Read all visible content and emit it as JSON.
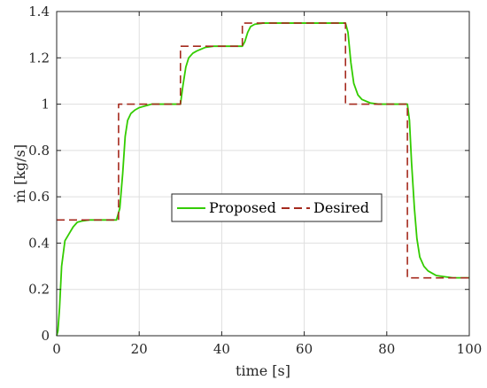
{
  "chart_data": {
    "type": "line",
    "xlabel": "time [s]",
    "ylabel": "ṁ [kg/s]",
    "xlim": [
      0,
      100
    ],
    "ylim": [
      0,
      1.4
    ],
    "xticks": [
      "0",
      "20",
      "40",
      "60",
      "80",
      "100"
    ],
    "yticks": [
      "0",
      "0.2",
      "0.4",
      "0.6",
      "0.8",
      "1",
      "1.2",
      "1.4"
    ],
    "grid": true,
    "legend": {
      "placement": "center",
      "orientation": "horizontal"
    },
    "series": [
      {
        "name": "Proposed",
        "color": "#33cc00",
        "style": "solid",
        "x": [
          0,
          0.3,
          0.7,
          1.2,
          2,
          3,
          4,
          5,
          6,
          8,
          10,
          12,
          14.5,
          15.3,
          16,
          16.6,
          17.2,
          18,
          19,
          20,
          21,
          22,
          23,
          25,
          30,
          30.6,
          31.3,
          32,
          33,
          34,
          36,
          38,
          40,
          43,
          45,
          45.6,
          46.3,
          47,
          48,
          50,
          55,
          60,
          65,
          70,
          70.6,
          71.3,
          72,
          73,
          74,
          76,
          78,
          80,
          85,
          85.5,
          86,
          86.7,
          87.3,
          88,
          89,
          90,
          91,
          92,
          94,
          96,
          100
        ],
        "y": [
          0,
          0.02,
          0.12,
          0.3,
          0.41,
          0.44,
          0.47,
          0.49,
          0.495,
          0.5,
          0.5,
          0.5,
          0.5,
          0.55,
          0.7,
          0.86,
          0.93,
          0.96,
          0.975,
          0.985,
          0.99,
          0.995,
          1.0,
          1.0,
          1.0,
          1.08,
          1.16,
          1.2,
          1.22,
          1.23,
          1.245,
          1.25,
          1.25,
          1.25,
          1.25,
          1.27,
          1.31,
          1.335,
          1.345,
          1.35,
          1.35,
          1.35,
          1.35,
          1.35,
          1.31,
          1.18,
          1.09,
          1.04,
          1.02,
          1.005,
          1.0,
          1.0,
          1.0,
          0.93,
          0.75,
          0.55,
          0.42,
          0.34,
          0.3,
          0.28,
          0.27,
          0.26,
          0.255,
          0.25,
          0.25
        ]
      },
      {
        "name": "Desired",
        "color": "#a52a1e",
        "style": "dashed",
        "x": [
          0,
          15,
          15,
          30,
          30,
          45,
          45,
          70,
          70,
          85,
          85,
          100
        ],
        "y": [
          0.5,
          0.5,
          1.0,
          1.0,
          1.25,
          1.25,
          1.35,
          1.35,
          1.0,
          1.0,
          0.25,
          0.25
        ]
      }
    ]
  }
}
